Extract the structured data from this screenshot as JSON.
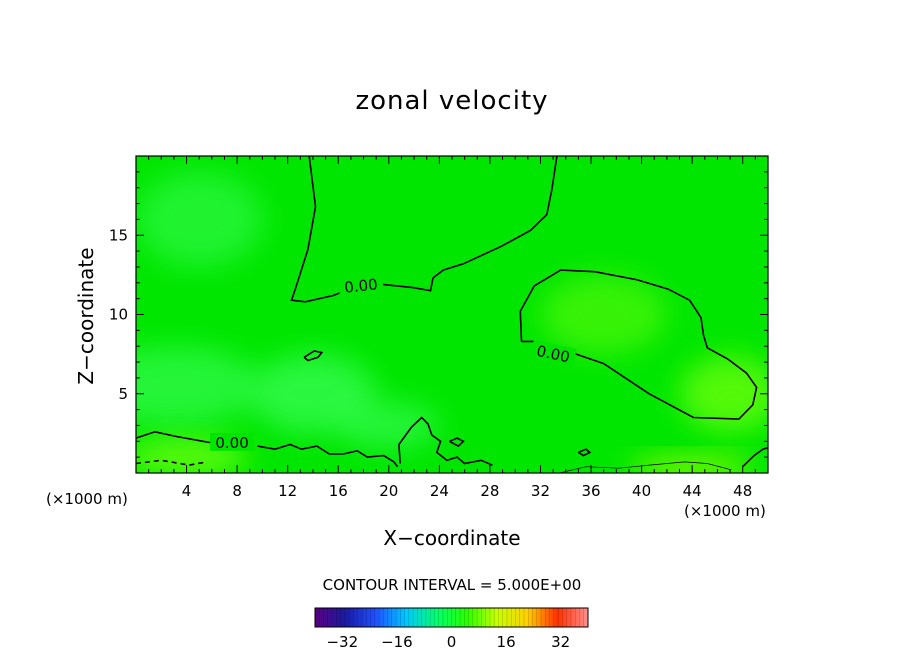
{
  "chart_data": {
    "type": "heatmap",
    "title": "zonal velocity",
    "xlabel": "X−coordinate",
    "ylabel": "Z−coordinate",
    "x_unit_left": "(×1000 m)",
    "x_unit_right": "(×1000 m)",
    "xlim": [
      0,
      50
    ],
    "ylim": [
      0,
      20
    ],
    "x_ticks": [
      4,
      8,
      12,
      16,
      20,
      24,
      28,
      32,
      36,
      40,
      44,
      48
    ],
    "x_tick_labels": [
      "4",
      "8",
      "12",
      "16",
      "20",
      "24",
      "28",
      "32",
      "36",
      "40",
      "44",
      "48"
    ],
    "y_ticks": [
      5,
      10,
      15
    ],
    "y_tick_labels": [
      "5",
      "10",
      "15"
    ],
    "contour_interval": "CONTOUR INTERVAL = 5.000E+00",
    "contour_labels": [
      "0.00",
      "0.00",
      "0.00"
    ],
    "contour_lines": [
      {
        "value": 0,
        "label": "0.00",
        "points": [
          [
            13.7,
            20
          ],
          [
            14.2,
            16.8
          ],
          [
            13.6,
            14.1
          ],
          [
            12.6,
            11.6
          ],
          [
            12.3,
            10.9
          ],
          [
            13.4,
            10.8
          ],
          [
            15.6,
            11.2
          ],
          [
            17.2,
            11.7
          ],
          [
            19.5,
            11.9
          ],
          [
            21.9,
            11.7
          ],
          [
            23.3,
            11.5
          ],
          [
            23.5,
            12.3
          ],
          [
            24.3,
            12.8
          ],
          [
            25.9,
            13.2
          ],
          [
            28.9,
            14.3
          ],
          [
            31.2,
            15.3
          ],
          [
            32.5,
            16.3
          ],
          [
            32.9,
            17.9
          ],
          [
            33.3,
            20
          ]
        ]
      },
      {
        "value": 0,
        "label": "0.00",
        "points": [
          [
            30.5,
            8.3
          ],
          [
            30.4,
            10.2
          ],
          [
            31.5,
            11.8
          ],
          [
            33.6,
            12.8
          ],
          [
            36.3,
            12.7
          ],
          [
            39.6,
            12.2
          ],
          [
            42.1,
            11.6
          ],
          [
            43.8,
            10.9
          ],
          [
            44.7,
            9.8
          ],
          [
            44.9,
            8.7
          ],
          [
            45.2,
            7.9
          ],
          [
            46.8,
            7.2
          ],
          [
            48.3,
            6.3
          ],
          [
            49.1,
            5.4
          ],
          [
            48.8,
            4.3
          ],
          [
            47.7,
            3.4
          ],
          [
            44.1,
            3.5
          ],
          [
            40.6,
            5.0
          ],
          [
            37.0,
            6.9
          ],
          [
            34.1,
            7.7
          ],
          [
            31.4,
            8.3
          ],
          [
            30.5,
            8.3
          ]
        ]
      },
      {
        "value": 0,
        "label": "0.00",
        "points": [
          [
            0,
            2.2
          ],
          [
            1.5,
            2.6
          ],
          [
            3.2,
            2.3
          ],
          [
            5.3,
            2.0
          ],
          [
            6.0,
            1.9
          ]
        ]
      },
      {
        "value": 0,
        "label": "",
        "points": [
          [
            9.6,
            1.7
          ],
          [
            11.0,
            1.5
          ],
          [
            12.2,
            1.8
          ],
          [
            13.1,
            1.5
          ],
          [
            14.3,
            1.7
          ],
          [
            15.3,
            1.2
          ],
          [
            16.4,
            1.2
          ],
          [
            17.5,
            1.4
          ],
          [
            18.3,
            1.0
          ],
          [
            19.6,
            1.1
          ],
          [
            20.4,
            0.7
          ],
          [
            20.7,
            0.4
          ]
        ]
      },
      {
        "value": 0,
        "label": "",
        "points": [
          [
            20.9,
            0.6
          ],
          [
            20.8,
            1.8
          ],
          [
            21.8,
            2.9
          ],
          [
            22.6,
            3.5
          ],
          [
            23.1,
            3.1
          ],
          [
            23.4,
            2.4
          ],
          [
            24.1,
            2.0
          ],
          [
            23.8,
            1.3
          ],
          [
            24.6,
            0.8
          ],
          [
            25.4,
            1.0
          ],
          [
            26.0,
            0.6
          ],
          [
            27.3,
            0.8
          ],
          [
            28.2,
            0.5
          ]
        ]
      },
      {
        "value": 0,
        "label": "",
        "points": [
          [
            13.3,
            7.3
          ],
          [
            14.1,
            7.7
          ],
          [
            14.7,
            7.6
          ],
          [
            14.4,
            7.3
          ],
          [
            13.6,
            7.1
          ],
          [
            13.3,
            7.3
          ]
        ]
      },
      {
        "value": 0,
        "label": "",
        "points": [
          [
            24.8,
            2.0
          ],
          [
            25.4,
            2.2
          ],
          [
            25.9,
            2.0
          ],
          [
            25.5,
            1.7
          ],
          [
            24.8,
            2.0
          ]
        ]
      },
      {
        "value": 0,
        "label": "",
        "points": [
          [
            35.0,
            1.3
          ],
          [
            35.6,
            1.5
          ],
          [
            35.9,
            1.3
          ],
          [
            35.4,
            1.1
          ],
          [
            35.0,
            1.3
          ]
        ]
      },
      {
        "value": 0,
        "label": "",
        "points": [
          [
            48.0,
            0.4
          ],
          [
            48.9,
            1.1
          ],
          [
            49.6,
            1.5
          ],
          [
            50,
            1.6
          ]
        ]
      },
      {
        "value": 5,
        "label": "",
        "thin": true,
        "points": [
          [
            33.5,
            0
          ],
          [
            35.6,
            0.4
          ],
          [
            38.2,
            0.3
          ],
          [
            40.6,
            0.5
          ],
          [
            43.4,
            0.7
          ],
          [
            45.2,
            0.6
          ],
          [
            47.1,
            0.2
          ]
        ]
      },
      {
        "value": -5,
        "label": "",
        "dashed": true,
        "points": [
          [
            0,
            0.6
          ],
          [
            2.0,
            0.8
          ],
          [
            4.2,
            0.5
          ],
          [
            5.6,
            0.7
          ]
        ]
      }
    ],
    "field_patches": [
      {
        "x": 47,
        "y": 5,
        "rx": 4,
        "ry": 2.4,
        "value": 6
      },
      {
        "x": 44,
        "y": 0.3,
        "rx": 5,
        "ry": 0.7,
        "value": 14
      },
      {
        "x": 4,
        "y": 1.0,
        "rx": 5,
        "ry": 1.2,
        "value": 7
      },
      {
        "x": 3,
        "y": 5.5,
        "rx": 7,
        "ry": 2.5,
        "value": -4
      },
      {
        "x": 14,
        "y": 5,
        "rx": 5,
        "ry": 2.5,
        "value": -5
      },
      {
        "x": 5,
        "y": 16,
        "rx": 5,
        "ry": 3,
        "value": -3
      },
      {
        "x": 37,
        "y": 10,
        "rx": 5,
        "ry": 2.5,
        "value": 3
      },
      {
        "x": 20,
        "y": 3,
        "rx": 4,
        "ry": 1.5,
        "value": -4
      }
    ],
    "colorbar": {
      "range": [
        -40,
        40
      ],
      "ticks": [
        -32,
        -16,
        0,
        16,
        32
      ],
      "tick_labels": [
        "−32",
        "−16",
        "0",
        "16",
        "32"
      ],
      "stops": [
        "#5a0080",
        "#1a1aa0",
        "#2050ff",
        "#00c8ff",
        "#00ff70",
        "#28ff00",
        "#c8ff00",
        "#ffd000",
        "#ff3000",
        "#ff9090"
      ]
    },
    "colors": {
      "background_field": "#00e600",
      "positive_patch": "#70ff10",
      "negative_patch": "#40ff60",
      "near_zero": "#00f000"
    }
  }
}
